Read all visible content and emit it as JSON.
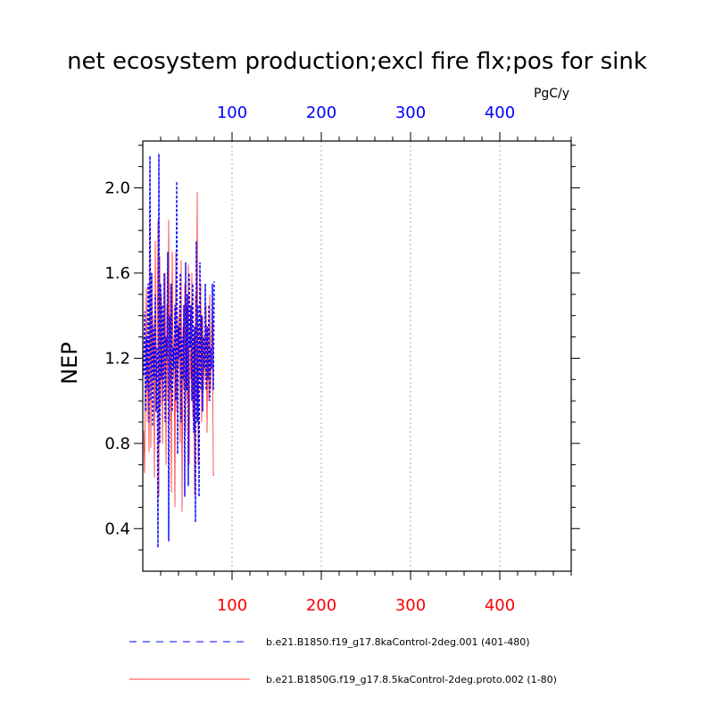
{
  "chart_data": {
    "type": "line",
    "title": "net ecosystem production;excl fire flx;pos for sink",
    "ylabel": "NEP",
    "units_label": "PgC/y",
    "xlim": [
      0,
      480
    ],
    "ylim": [
      0.2,
      2.22
    ],
    "y_ticks": [
      0.4,
      0.8,
      1.2,
      1.6,
      2.0
    ],
    "y_tick_labels": [
      "0.4",
      "0.8",
      "1.2",
      "1.6",
      "2.0"
    ],
    "x_ticks": [
      100,
      200,
      300,
      400
    ],
    "x_tick_labels_top": [
      "100",
      "200",
      "300",
      "400"
    ],
    "x_tick_labels_bottom": [
      "100",
      "200",
      "300",
      "400"
    ],
    "grid_x": true,
    "colors": {
      "series_a": "#0000ff",
      "series_b": "#ff0000",
      "top_axis": "#0000ff",
      "bottom_axis": "#ff0000"
    },
    "series": [
      {
        "name": "b.e21.B1850.f19_g17.8kaControl-2deg.001 (401-480)",
        "style": "dashed",
        "x": [
          1,
          2,
          3,
          4,
          5,
          6,
          7,
          8,
          9,
          10,
          11,
          12,
          13,
          14,
          15,
          16,
          17,
          18,
          19,
          20,
          21,
          22,
          23,
          24,
          25,
          26,
          27,
          28,
          29,
          30,
          31,
          32,
          33,
          34,
          35,
          36,
          37,
          38,
          39,
          40,
          41,
          42,
          43,
          44,
          45,
          46,
          47,
          48,
          49,
          50,
          51,
          52,
          53,
          54,
          55,
          56,
          57,
          58,
          59,
          60,
          61,
          62,
          63,
          64,
          65,
          66,
          67,
          68,
          69,
          70,
          71,
          72,
          73,
          74,
          75,
          76,
          77,
          78,
          79,
          80
        ],
        "y": [
          1.12,
          1.42,
          0.95,
          1.3,
          1.05,
          1.55,
          0.9,
          2.15,
          1.0,
          1.6,
          0.88,
          1.35,
          1.1,
          1.5,
          0.95,
          1.25,
          0.31,
          2.16,
          0.8,
          1.55,
          1.1,
          1.45,
          1.0,
          1.6,
          0.9,
          1.3,
          1.2,
          1.7,
          0.34,
          1.4,
          1.05,
          1.55,
          0.95,
          1.25,
          1.15,
          1.45,
          1.0,
          2.03,
          0.75,
          1.35,
          1.2,
          1.6,
          0.9,
          1.3,
          1.1,
          1.45,
          0.55,
          1.65,
          1.05,
          1.5,
          0.6,
          1.6,
          1.25,
          1.45,
          1.0,
          1.55,
          0.85,
          1.35,
          0.43,
          1.75,
          0.9,
          1.45,
          0.55,
          1.65,
          1.05,
          1.4,
          0.95,
          1.3,
          1.15,
          1.55,
          1.05,
          1.35,
          1.1,
          1.45,
          1.0,
          1.25,
          1.15,
          1.55,
          1.05,
          1.56
        ]
      },
      {
        "name": "b.e21.B1850G.f19_g17.8.5kaControl-2deg.proto.002 (1-80)",
        "style": "solid",
        "x": [
          1,
          2,
          3,
          4,
          5,
          6,
          7,
          8,
          9,
          10,
          11,
          12,
          13,
          14,
          15,
          16,
          17,
          18,
          19,
          20,
          21,
          22,
          23,
          24,
          25,
          26,
          27,
          28,
          29,
          30,
          31,
          32,
          33,
          34,
          35,
          36,
          37,
          38,
          39,
          40,
          41,
          42,
          43,
          44,
          45,
          46,
          47,
          48,
          49,
          50,
          51,
          52,
          53,
          54,
          55,
          56,
          57,
          58,
          59,
          60,
          61,
          62,
          63,
          64,
          65,
          66,
          67,
          68,
          69,
          70,
          71,
          72,
          73,
          74,
          75,
          76,
          77,
          78,
          79,
          80
        ],
        "y": [
          0.86,
          0.66,
          1.2,
          1.53,
          0.9,
          1.3,
          0.76,
          1.85,
          0.78,
          1.6,
          1.05,
          1.4,
          0.64,
          1.75,
          0.95,
          1.2,
          1.85,
          0.55,
          1.68,
          0.98,
          1.5,
          0.8,
          1.4,
          1.1,
          1.6,
          0.7,
          1.45,
          1.0,
          1.85,
          0.9,
          1.55,
          0.57,
          1.7,
          1.1,
          1.3,
          0.5,
          1.7,
          0.95,
          1.4,
          1.15,
          1.45,
          0.8,
          1.66,
          0.48,
          1.35,
          1.05,
          1.55,
          0.85,
          1.45,
          1.0,
          1.64,
          0.7,
          1.25,
          1.1,
          1.6,
          0.92,
          1.3,
          0.56,
          1.5,
          1.0,
          1.98,
          0.7,
          1.35,
          1.1,
          1.55,
          0.9,
          1.4,
          1.05,
          1.3,
          1.1,
          1.45,
          0.85,
          1.35,
          1.0,
          1.5,
          1.05,
          1.25,
          1.45,
          0.65,
          0.65
        ]
      }
    ]
  }
}
